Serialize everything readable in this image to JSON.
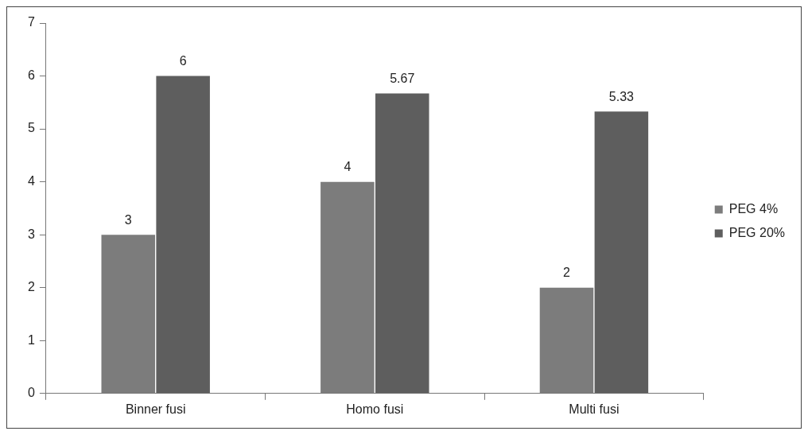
{
  "chart_data": {
    "type": "bar",
    "categories": [
      "Binner fusi",
      "Homo fusi",
      "Multi fusi"
    ],
    "series": [
      {
        "name": "PEG 4%",
        "color": "#7c7c7c",
        "values": [
          3,
          4,
          2
        ]
      },
      {
        "name": "PEG 20%",
        "color": "#5e5e5e",
        "values": [
          6,
          5.67,
          5.33
        ]
      }
    ],
    "ylim": [
      0,
      7
    ],
    "yticks": [
      0,
      1,
      2,
      3,
      4,
      5,
      6,
      7
    ],
    "grid": false,
    "legend": "right",
    "data_labels": true
  }
}
